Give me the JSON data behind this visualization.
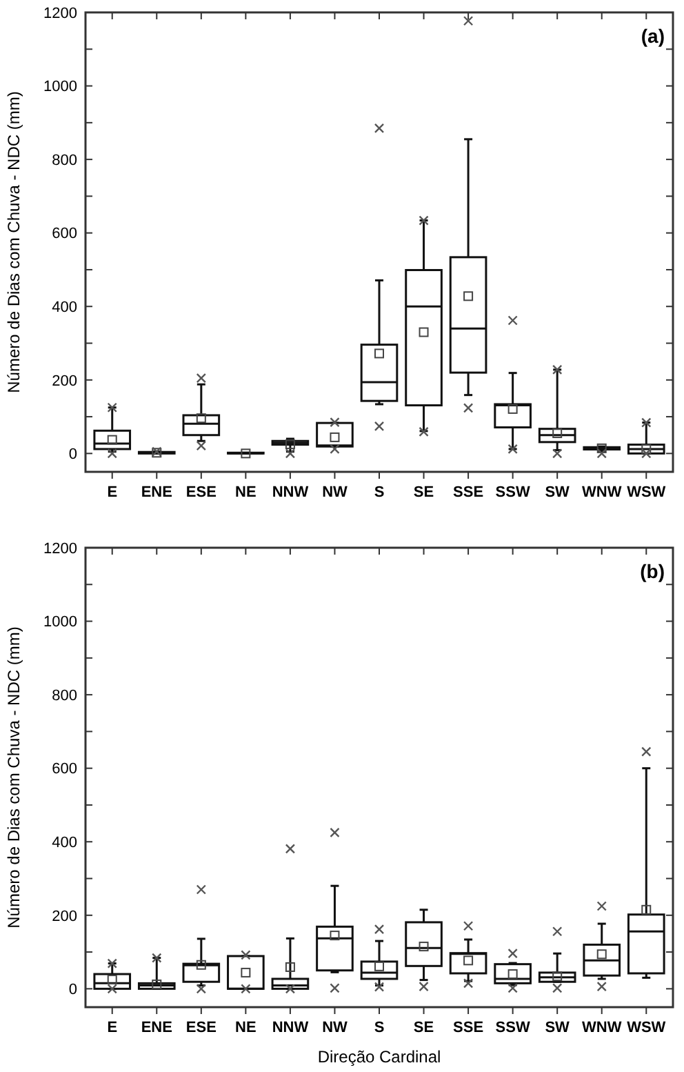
{
  "chart_data": [
    {
      "type": "box",
      "title": "(a)",
      "ylabel": "Número de Dias com Chuva - NDC (mm)",
      "categories": [
        "E",
        "ENE",
        "ESE",
        "NE",
        "NNW",
        "NW",
        "S",
        "SE",
        "SSE",
        "SSW",
        "SW",
        "WNW",
        "WSW"
      ],
      "ylim": [
        -50,
        1200
      ],
      "yticks": [
        0,
        {
          "value": 100,
          "label": null
        },
        200,
        {
          "value": 300,
          "label": null
        },
        400,
        {
          "value": 500,
          "label": null
        },
        600,
        {
          "value": 700,
          "label": null
        },
        800,
        {
          "value": 900,
          "label": null
        },
        1000,
        {
          "value": 1100,
          "label": null
        },
        1200
      ],
      "boxes": [
        {
          "low": 5,
          "q1": 12,
          "median": 27,
          "q3": 62,
          "high": 125,
          "mean": 37,
          "outliers": [
            125,
            0
          ]
        },
        {
          "low": 0,
          "q1": 0,
          "median": 2,
          "q3": 4,
          "high": 5,
          "mean": 2,
          "outliers": [
            5
          ]
        },
        {
          "low": 34,
          "q1": 50,
          "median": 81,
          "q3": 104,
          "high": 188,
          "mean": 96,
          "outliers": [
            205,
            21
          ]
        },
        {
          "low": 0,
          "q1": 0,
          "median": 0,
          "q3": 2,
          "high": 2,
          "mean": 0
        },
        {
          "low": 5,
          "q1": 24,
          "median": 29,
          "q3": 34,
          "high": 40,
          "mean": 25,
          "outliers": [
            0
          ]
        },
        {
          "low": 19,
          "q1": 19,
          "median": 22,
          "q3": 83,
          "high": 83,
          "mean": 44,
          "outliers": [
            85,
            12
          ]
        },
        {
          "low": 134,
          "q1": 143,
          "median": 194,
          "q3": 296,
          "high": 471,
          "mean": 272,
          "outliers": [
            885,
            74
          ]
        },
        {
          "low": 61,
          "q1": 131,
          "median": 400,
          "q3": 499,
          "high": 634,
          "mean": 330,
          "outliers": [
            634,
            59
          ]
        },
        {
          "low": 159,
          "q1": 220,
          "median": 340,
          "q3": 534,
          "high": 855,
          "mean": 428,
          "outliers": [
            1177,
            124
          ]
        },
        {
          "low": 12,
          "q1": 71,
          "median": 131,
          "q3": 134,
          "high": 219,
          "mean": 121,
          "outliers": [
            362,
            12
          ]
        },
        {
          "low": 9,
          "q1": 31,
          "median": 50,
          "q3": 67,
          "high": 228,
          "mean": 55,
          "outliers": [
            228,
            0
          ]
        },
        {
          "low": 5,
          "q1": 11,
          "median": 14,
          "q3": 17,
          "high": 19,
          "mean": 14,
          "outliers": [
            0
          ]
        },
        {
          "low": 0,
          "q1": 0,
          "median": 12,
          "q3": 24,
          "high": 84,
          "mean": 12,
          "outliers": [
            84,
            0
          ]
        }
      ],
      "tick_labels": "y"
    },
    {
      "type": "box",
      "title": "(b)",
      "ylabel": "Número de Dias com Chuva - NDC (mm)",
      "xlabel": "Direção Cardinal",
      "categories": [
        "E",
        "ENE",
        "ESE",
        "NE",
        "NNW",
        "NW",
        "S",
        "SE",
        "SSE",
        "SSW",
        "SW",
        "WNW",
        "WSW"
      ],
      "ylim": [
        -50,
        1200
      ],
      "yticks": [
        0,
        {
          "value": 100,
          "label": null
        },
        200,
        {
          "value": 300,
          "label": null
        },
        400,
        {
          "value": 500,
          "label": null
        },
        600,
        {
          "value": 700,
          "label": null
        },
        800,
        {
          "value": 900,
          "label": null
        },
        1000,
        {
          "value": 1100,
          "label": null
        },
        1200
      ],
      "boxes": [
        {
          "low": 0,
          "q1": 0,
          "median": 15,
          "q3": 40,
          "high": 69,
          "mean": 25,
          "outliers": [
            69,
            0
          ]
        },
        {
          "low": 0,
          "q1": 0,
          "median": 9,
          "q3": 15,
          "high": 84,
          "mean": 12,
          "outliers": [
            84
          ]
        },
        {
          "low": 9,
          "q1": 19,
          "median": 64,
          "q3": 68,
          "high": 136,
          "mean": 65,
          "outliers": [
            270,
            0
          ]
        },
        {
          "low": 0,
          "q1": 0,
          "median": 0,
          "q3": 89,
          "high": 89,
          "mean": 44,
          "outliers": [
            92,
            0
          ]
        },
        {
          "low": 0,
          "q1": 0,
          "median": 9,
          "q3": 27,
          "high": 137,
          "mean": 59,
          "outliers": [
            381,
            0
          ]
        },
        {
          "low": 45,
          "q1": 50,
          "median": 137,
          "q3": 169,
          "high": 280,
          "mean": 145,
          "outliers": [
            425,
            2
          ]
        },
        {
          "low": 9,
          "q1": 27,
          "median": 44,
          "q3": 74,
          "high": 130,
          "mean": 61,
          "outliers": [
            162,
            5
          ]
        },
        {
          "low": 24,
          "q1": 62,
          "median": 111,
          "q3": 181,
          "high": 215,
          "mean": 115,
          "outliers": [
            6
          ]
        },
        {
          "low": 21,
          "q1": 42,
          "median": 95,
          "q3": 97,
          "high": 134,
          "mean": 77,
          "outliers": [
            171,
            15
          ]
        },
        {
          "low": 10,
          "q1": 15,
          "median": 27,
          "q3": 67,
          "high": 70,
          "mean": 40,
          "outliers": [
            96,
            2
          ]
        },
        {
          "low": 19,
          "q1": 19,
          "median": 31,
          "q3": 44,
          "high": 96,
          "mean": 34,
          "outliers": [
            156,
            2
          ]
        },
        {
          "low": 27,
          "q1": 36,
          "median": 77,
          "q3": 120,
          "high": 177,
          "mean": 94,
          "outliers": [
            225,
            6
          ]
        },
        {
          "low": 30,
          "q1": 42,
          "median": 156,
          "q3": 202,
          "high": 600,
          "mean": 215,
          "outliers": [
            645
          ]
        }
      ]
    }
  ]
}
